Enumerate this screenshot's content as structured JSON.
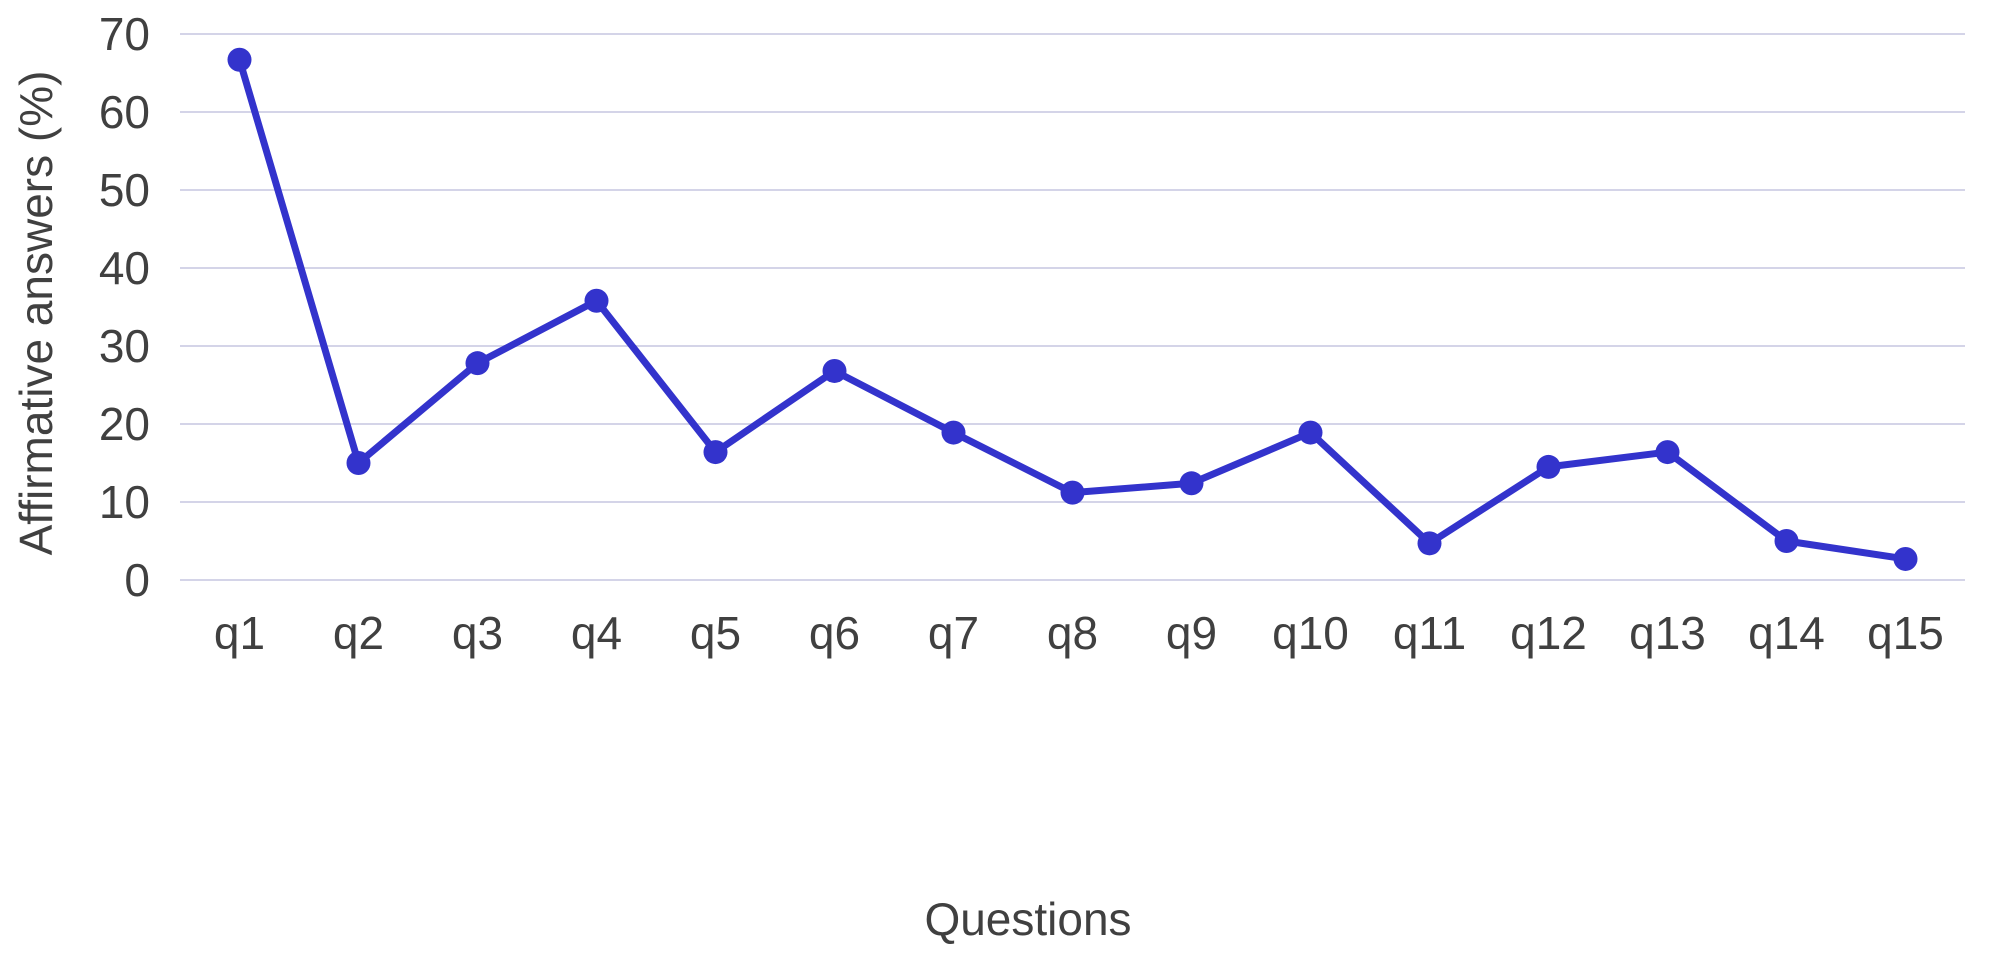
{
  "chart_data": {
    "type": "line",
    "title": "",
    "xlabel": "Questions",
    "ylabel": "Affirmative answers (%)",
    "categories": [
      "q1",
      "q2",
      "q3",
      "q4",
      "q5",
      "q6",
      "q7",
      "q8",
      "q9",
      "q10",
      "q11",
      "q12",
      "q13",
      "q14",
      "q15"
    ],
    "series": [
      {
        "values": [
          66.7,
          15.0,
          27.8,
          35.8,
          16.4,
          26.8,
          18.9,
          11.2,
          12.4,
          18.9,
          4.7,
          14.5,
          16.4,
          5.0,
          2.7
        ]
      }
    ],
    "ylim": [
      0,
      70
    ],
    "yticks": [
      "0",
      "10",
      "20",
      "30",
      "40",
      "50",
      "60",
      "70"
    ],
    "grid": true,
    "legend": "none",
    "colors": {
      "line": "#3333cc",
      "grid": "#d4d4e8",
      "text": "#404040"
    }
  }
}
